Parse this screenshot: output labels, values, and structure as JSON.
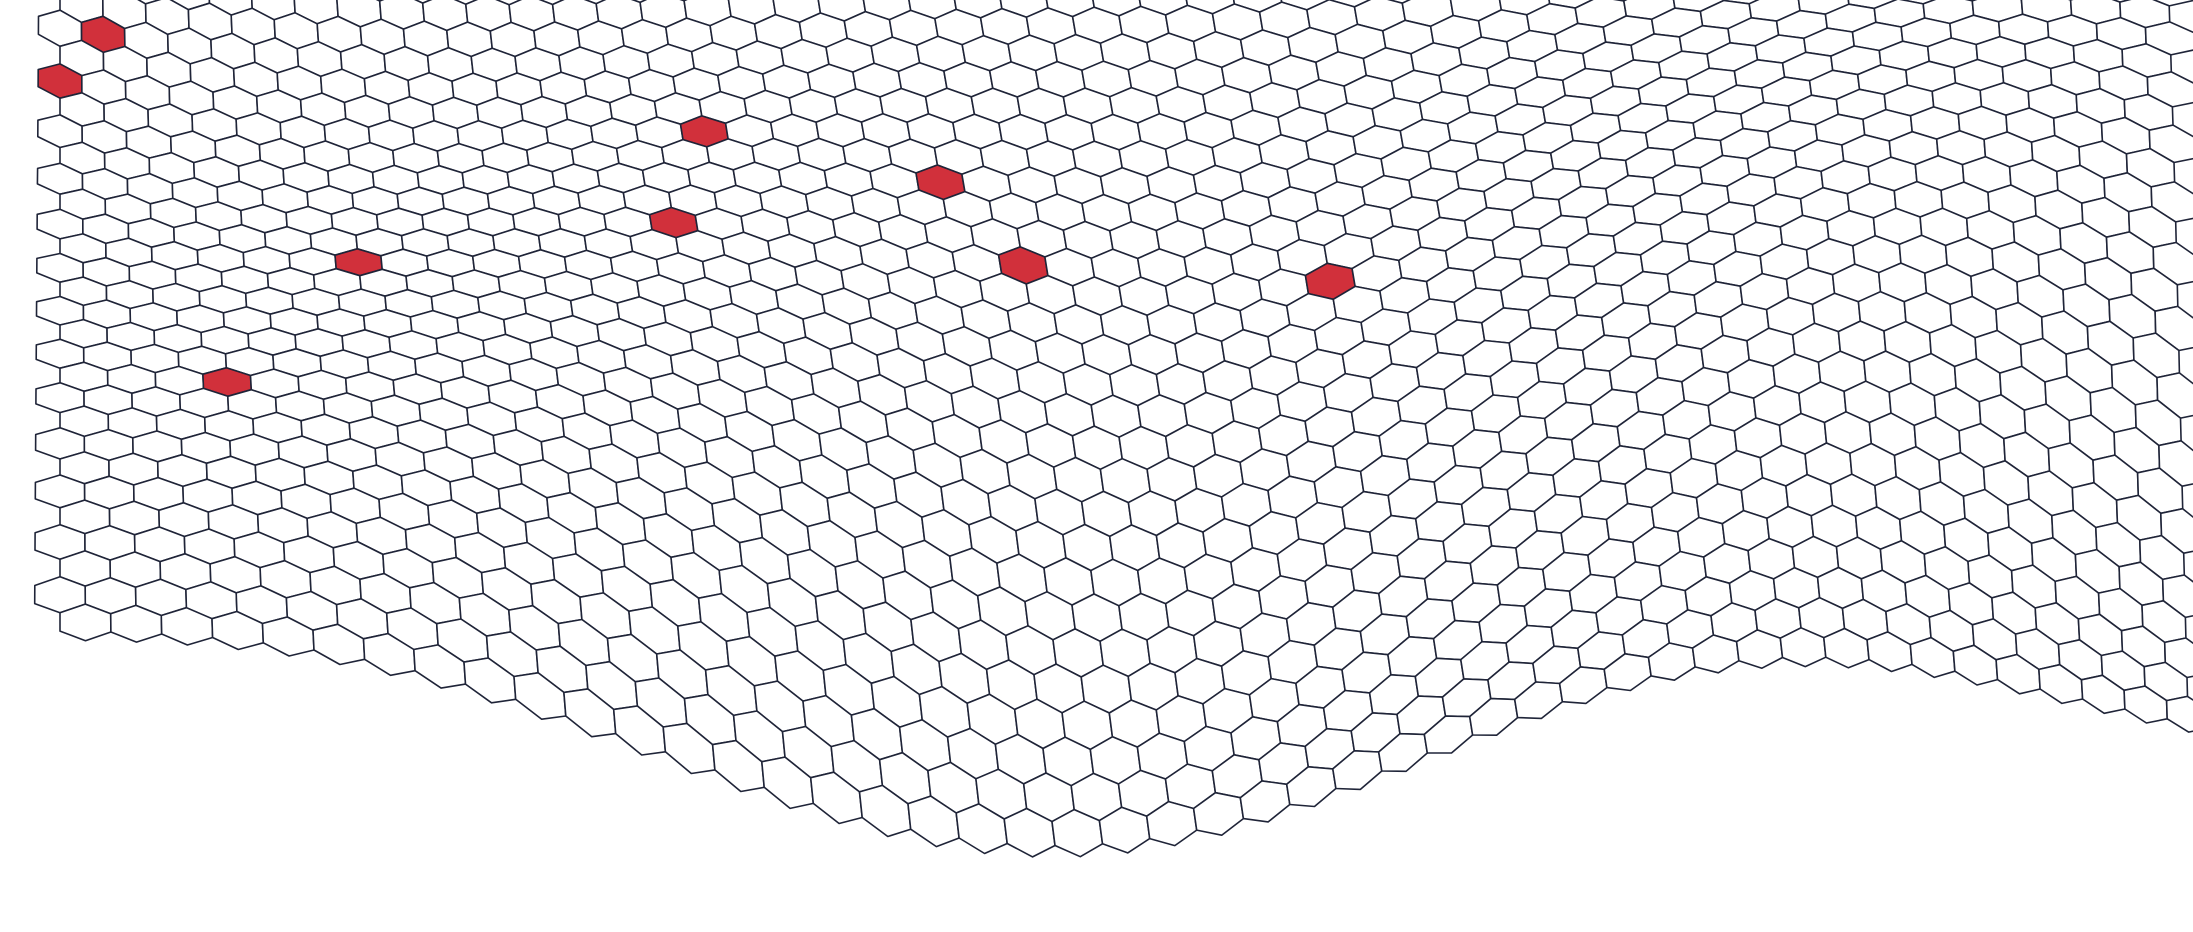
{
  "scene": {
    "subject": "3d-hexagonal-mesh",
    "background_color": "#ffffff",
    "line_color": "#1f2438",
    "cell_fill_color": "#ffffff",
    "highlight_color": "#d1303b",
    "highlighted_cell_count": 9
  }
}
